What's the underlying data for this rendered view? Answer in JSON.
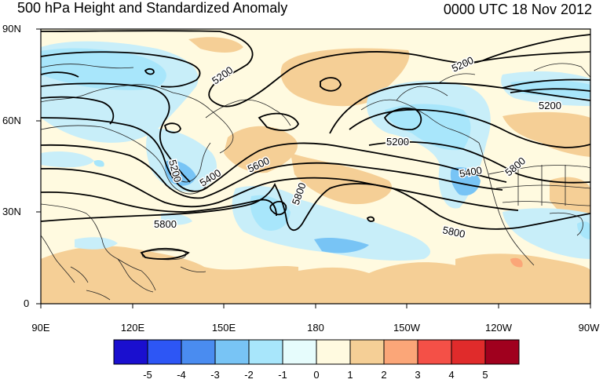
{
  "header": {
    "title": "500 hPa Height and Standardized Anomaly",
    "timestamp": "0000 UTC 18 Nov 2012"
  },
  "axes": {
    "lat_labels": [
      "90N",
      "60N",
      "30N",
      "0"
    ],
    "lon_labels": [
      "90E",
      "120E",
      "150E",
      "180",
      "150W",
      "120W",
      "90W"
    ]
  },
  "contour_labels": [
    "5200",
    "5200",
    "5200",
    "5200",
    "5200",
    "5400",
    "5400",
    "5600",
    "5800",
    "5800",
    "5800",
    "5800"
  ],
  "colorbar": {
    "labels": [
      "-5",
      "-4",
      "-3",
      "-2",
      "-1",
      "0",
      "1",
      "2",
      "3",
      "4",
      "5"
    ],
    "colors": [
      "#1a0fcf",
      "#2d56f5",
      "#4a8cf0",
      "#78c4f5",
      "#a8e6fb",
      "#e6fcfc",
      "#fffae0",
      "#f5cf96",
      "#fba678",
      "#f45047",
      "#e02b2b",
      "#a0001e"
    ]
  },
  "colors": {
    "neutral": "#fffae0",
    "pos1": "#f5cf96",
    "pos2": "#fba678",
    "neg1": "#c8eef9",
    "neg2": "#a8e6fb",
    "neg3": "#78c4f5"
  }
}
